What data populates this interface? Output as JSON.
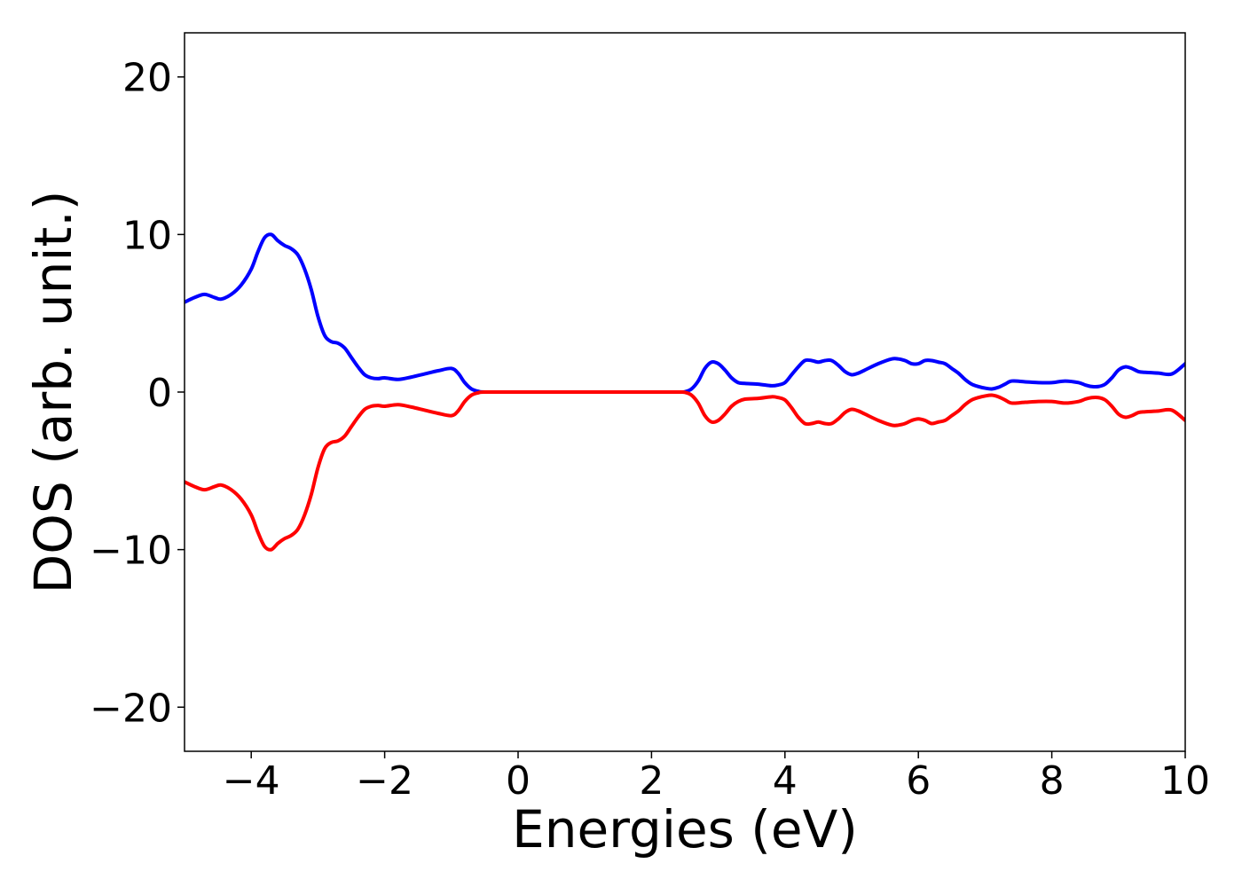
{
  "chart_data": {
    "type": "line",
    "title": "",
    "xlabel": "Energies (eV)",
    "ylabel": "DOS (arb. unit.)",
    "xlim": [
      -5,
      10
    ],
    "ylim": [
      -22.8,
      22.8
    ],
    "xticks": [
      -4,
      -2,
      0,
      2,
      4,
      6,
      8,
      10
    ],
    "xtick_labels": [
      "−4",
      "−2",
      "0",
      "2",
      "4",
      "6",
      "8",
      "10"
    ],
    "yticks": [
      -20,
      -10,
      0,
      10,
      20
    ],
    "ytick_labels": [
      "−20",
      "−10",
      "0",
      "10",
      "20"
    ],
    "grid": false,
    "legend": "none",
    "series": [
      {
        "color": "#0000ff",
        "x": [
          -5.0,
          -4.85,
          -4.7,
          -4.55,
          -4.45,
          -4.3,
          -4.15,
          -4.0,
          -3.9,
          -3.8,
          -3.7,
          -3.6,
          -3.5,
          -3.4,
          -3.3,
          -3.2,
          -3.1,
          -3.0,
          -2.9,
          -2.8,
          -2.7,
          -2.6,
          -2.5,
          -2.4,
          -2.3,
          -2.2,
          -2.1,
          -2.0,
          -1.8,
          -1.6,
          -1.4,
          -1.2,
          -1.0,
          -0.9,
          -0.8,
          -0.7,
          -0.6,
          -0.5,
          0.0,
          0.5,
          1.0,
          1.5,
          2.0,
          2.4,
          2.5,
          2.6,
          2.7,
          2.8,
          2.9,
          3.0,
          3.1,
          3.2,
          3.3,
          3.4,
          3.6,
          3.8,
          3.9,
          4.0,
          4.1,
          4.2,
          4.3,
          4.4,
          4.5,
          4.6,
          4.7,
          4.8,
          4.9,
          5.0,
          5.1,
          5.2,
          5.4,
          5.6,
          5.7,
          5.8,
          5.9,
          6.0,
          6.1,
          6.2,
          6.3,
          6.4,
          6.5,
          6.6,
          6.7,
          6.8,
          6.9,
          7.0,
          7.1,
          7.2,
          7.3,
          7.4,
          7.6,
          7.8,
          8.0,
          8.2,
          8.4,
          8.5,
          8.6,
          8.7,
          8.8,
          8.9,
          9.0,
          9.1,
          9.2,
          9.3,
          9.4,
          9.6,
          9.8,
          10.0
        ],
        "y": [
          5.7,
          6.0,
          6.2,
          6.0,
          5.9,
          6.2,
          6.8,
          7.8,
          8.9,
          9.8,
          10.0,
          9.6,
          9.3,
          9.1,
          8.7,
          7.8,
          6.5,
          4.8,
          3.6,
          3.2,
          3.1,
          2.8,
          2.2,
          1.6,
          1.1,
          0.9,
          0.85,
          0.9,
          0.8,
          0.95,
          1.15,
          1.35,
          1.5,
          1.2,
          0.6,
          0.2,
          0.05,
          0.0,
          0.0,
          0.0,
          0.0,
          0.0,
          0.0,
          0.0,
          0.02,
          0.2,
          0.7,
          1.5,
          1.9,
          1.8,
          1.4,
          0.9,
          0.6,
          0.55,
          0.5,
          0.4,
          0.45,
          0.6,
          1.1,
          1.6,
          2.0,
          2.0,
          1.9,
          2.0,
          2.0,
          1.7,
          1.3,
          1.1,
          1.2,
          1.4,
          1.8,
          2.1,
          2.1,
          2.0,
          1.8,
          1.8,
          2.0,
          2.0,
          1.9,
          1.8,
          1.5,
          1.2,
          0.8,
          0.5,
          0.35,
          0.25,
          0.2,
          0.3,
          0.5,
          0.7,
          0.65,
          0.6,
          0.6,
          0.7,
          0.6,
          0.45,
          0.35,
          0.35,
          0.5,
          0.9,
          1.4,
          1.6,
          1.5,
          1.3,
          1.25,
          1.2,
          1.15,
          1.8
        ]
      },
      {
        "color": "#ff0000",
        "x": [
          -5.0,
          -4.85,
          -4.7,
          -4.55,
          -4.45,
          -4.3,
          -4.15,
          -4.0,
          -3.9,
          -3.8,
          -3.7,
          -3.6,
          -3.5,
          -3.4,
          -3.3,
          -3.2,
          -3.1,
          -3.0,
          -2.9,
          -2.8,
          -2.7,
          -2.6,
          -2.5,
          -2.4,
          -2.3,
          -2.2,
          -2.1,
          -2.0,
          -1.8,
          -1.6,
          -1.4,
          -1.2,
          -1.0,
          -0.9,
          -0.8,
          -0.7,
          -0.6,
          -0.5,
          0.0,
          0.5,
          1.0,
          1.5,
          2.0,
          2.4,
          2.5,
          2.6,
          2.7,
          2.8,
          2.9,
          3.0,
          3.1,
          3.2,
          3.3,
          3.4,
          3.6,
          3.8,
          3.9,
          4.0,
          4.1,
          4.2,
          4.3,
          4.4,
          4.5,
          4.6,
          4.7,
          4.8,
          4.9,
          5.0,
          5.1,
          5.2,
          5.4,
          5.6,
          5.7,
          5.8,
          5.9,
          6.0,
          6.1,
          6.2,
          6.3,
          6.4,
          6.5,
          6.6,
          6.7,
          6.8,
          6.9,
          7.0,
          7.1,
          7.2,
          7.3,
          7.4,
          7.6,
          7.8,
          8.0,
          8.2,
          8.4,
          8.5,
          8.6,
          8.7,
          8.8,
          8.9,
          9.0,
          9.1,
          9.2,
          9.3,
          9.4,
          9.6,
          9.8,
          10.0
        ],
        "y": [
          -5.7,
          -6.0,
          -6.2,
          -6.0,
          -5.9,
          -6.2,
          -6.8,
          -7.8,
          -8.9,
          -9.8,
          -10.0,
          -9.6,
          -9.3,
          -9.1,
          -8.7,
          -7.8,
          -6.5,
          -4.8,
          -3.6,
          -3.2,
          -3.1,
          -2.8,
          -2.2,
          -1.6,
          -1.1,
          -0.9,
          -0.85,
          -0.9,
          -0.8,
          -0.95,
          -1.15,
          -1.35,
          -1.5,
          -1.2,
          -0.6,
          -0.2,
          -0.05,
          0.0,
          0.0,
          0.0,
          0.0,
          0.0,
          0.0,
          0.0,
          -0.02,
          -0.2,
          -0.7,
          -1.5,
          -1.9,
          -1.8,
          -1.4,
          -0.9,
          -0.6,
          -0.45,
          -0.4,
          -0.3,
          -0.35,
          -0.5,
          -1.0,
          -1.6,
          -2.0,
          -2.0,
          -1.9,
          -2.0,
          -2.0,
          -1.7,
          -1.3,
          -1.1,
          -1.2,
          -1.4,
          -1.8,
          -2.1,
          -2.1,
          -2.0,
          -1.8,
          -1.7,
          -1.8,
          -2.0,
          -1.9,
          -1.8,
          -1.5,
          -1.2,
          -0.8,
          -0.5,
          -0.35,
          -0.25,
          -0.2,
          -0.3,
          -0.5,
          -0.7,
          -0.65,
          -0.6,
          -0.6,
          -0.7,
          -0.6,
          -0.45,
          -0.35,
          -0.35,
          -0.5,
          -0.9,
          -1.4,
          -1.6,
          -1.5,
          -1.3,
          -1.25,
          -1.2,
          -1.15,
          -1.8
        ]
      }
    ]
  }
}
